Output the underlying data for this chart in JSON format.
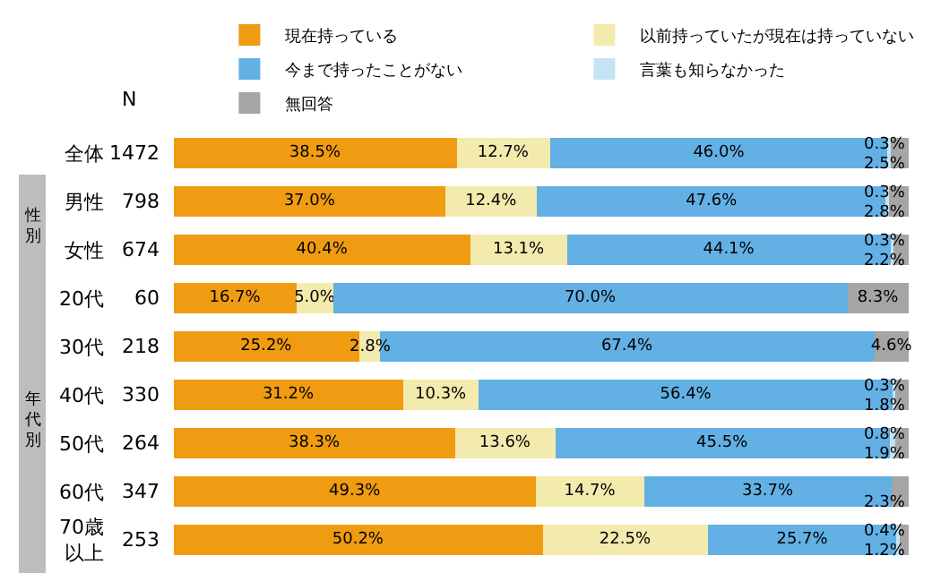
{
  "chart_data": {
    "type": "bar",
    "orientation": "horizontal",
    "stacked": true,
    "categories": [
      "全体",
      "男性",
      "女性",
      "20代",
      "30代",
      "40代",
      "50代",
      "60代",
      "70歳以上"
    ],
    "series": [
      {
        "name": "現在持っている",
        "color": "#f09c12",
        "values": [
          38.5,
          37.0,
          40.4,
          16.7,
          25.2,
          31.2,
          38.3,
          49.3,
          50.2
        ],
        "value_labels": [
          "38.5%",
          "37.0%",
          "40.4%",
          "16.7%",
          "25.2%",
          "31.2%",
          "38.3%",
          "49.3%",
          "50.2%"
        ]
      },
      {
        "name": "以前持っていたが現在は持っていない",
        "color": "#f3eaae",
        "values": [
          12.7,
          12.4,
          13.1,
          5.0,
          2.8,
          10.3,
          13.6,
          14.7,
          22.5
        ],
        "value_labels": [
          "12.7%",
          "12.4%",
          "13.1%",
          "5.0%",
          "2.8%",
          "10.3%",
          "13.6%",
          "14.7%",
          "22.5%"
        ]
      },
      {
        "name": "今まで持ったことがない",
        "color": "#62b0e4",
        "values": [
          46.0,
          47.6,
          44.1,
          70.0,
          67.4,
          56.4,
          45.5,
          33.7,
          25.7
        ],
        "value_labels": [
          "46.0%",
          "47.6%",
          "44.1%",
          "70.0%",
          "67.4%",
          "56.4%",
          "45.5%",
          "33.7%",
          "25.7%"
        ]
      },
      {
        "name": "言葉も知らなかった",
        "color": "#c5e3f3",
        "values": [
          0.3,
          0.3,
          0.3,
          0,
          0,
          0.3,
          0.8,
          0,
          0.4
        ],
        "value_labels": [
          "0.3%",
          "0.3%",
          "0.3%",
          null,
          null,
          "0.3%",
          "0.8%",
          null,
          "0.4%"
        ]
      },
      {
        "name": "無回答",
        "color": "#a5a5a5",
        "values": [
          2.5,
          2.8,
          2.2,
          8.3,
          4.6,
          1.8,
          1.9,
          2.3,
          1.2
        ],
        "value_labels": [
          "2.5%",
          "2.8%",
          "2.2%",
          "8.3%",
          "4.6%",
          "1.8%",
          "1.9%",
          "2.3%",
          "1.2%"
        ]
      }
    ],
    "xlim": [
      0,
      100
    ],
    "tick_labels": "y",
    "legend": "top right",
    "annotations": [
      "N",
      "性別",
      "年代別",
      "1472",
      "798",
      "674",
      "60",
      "218",
      "330",
      "264",
      "347",
      "253"
    ]
  }
}
